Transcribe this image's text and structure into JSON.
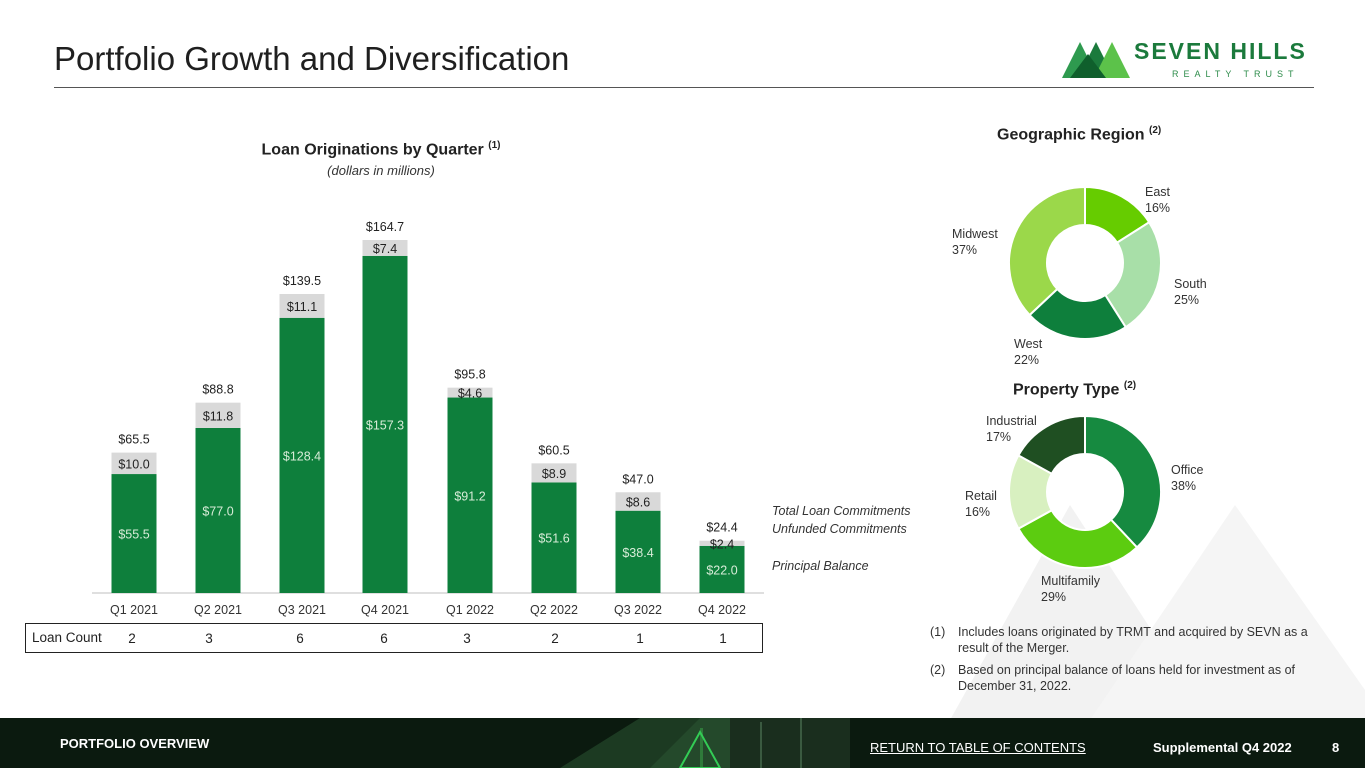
{
  "page": {
    "title": "Portfolio Growth and Diversification",
    "logo_name": "SEVEN HILLS",
    "logo_sub": "REALTY TRUST"
  },
  "colors": {
    "principal": "#0e7f3c",
    "unfunded": "#d9d9d9",
    "east": "#66cc00",
    "south": "#a8dfa8",
    "west": "#0e7f3c",
    "midwest": "#9bd84a",
    "office": "#168a40",
    "multifamily": "#5ccc10",
    "retail": "#d8f0c0",
    "industrial": "#1f4f22"
  },
  "chart_data": [
    {
      "type": "bar",
      "stacked": true,
      "title": "Loan Originations by Quarter",
      "title_footnote": "(1)",
      "subtitle": "(dollars in millions)",
      "categories": [
        "Q1 2021",
        "Q2 2021",
        "Q3 2021",
        "Q4 2021",
        "Q1 2022",
        "Q2 2022",
        "Q3 2022",
        "Q4 2022"
      ],
      "series": [
        {
          "name": "Principal Balance",
          "values": [
            55.5,
            77.0,
            128.4,
            157.3,
            91.2,
            51.6,
            38.4,
            22.0
          ],
          "labels": [
            "$55.5",
            "$77.0",
            "$128.4",
            "$157.3",
            "$91.2",
            "$51.6",
            "$38.4",
            "$22.0"
          ]
        },
        {
          "name": "Unfunded Commitments",
          "values": [
            10.0,
            11.8,
            11.1,
            7.4,
            4.6,
            8.9,
            8.6,
            2.4
          ],
          "labels": [
            "$10.0",
            "$11.8",
            "$11.1",
            "$7.4",
            "$4.6",
            "$8.9",
            "$8.6",
            "$2.4"
          ]
        }
      ],
      "totals": [
        65.5,
        88.8,
        139.5,
        164.7,
        95.8,
        60.5,
        47.0,
        24.4
      ],
      "total_labels": [
        "$65.5",
        "$88.8",
        "$139.5",
        "$164.7",
        "$95.8",
        "$60.5",
        "$47.0",
        "$24.4"
      ],
      "legend": {
        "total": "Total Loan Commitments",
        "unfunded": "Unfunded Commitments",
        "principal": "Principal Balance"
      },
      "ylim": [
        0,
        175
      ],
      "loan_count_label": "Loan Count",
      "loan_counts": [
        "2",
        "3",
        "6",
        "6",
        "3",
        "2",
        "1",
        "1"
      ]
    },
    {
      "type": "pie",
      "donut": true,
      "title": "Geographic Region",
      "title_footnote": "(2)",
      "slices": [
        {
          "name": "East",
          "value": 16,
          "label": "16%"
        },
        {
          "name": "South",
          "value": 25,
          "label": "25%"
        },
        {
          "name": "West",
          "value": 22,
          "label": "22%"
        },
        {
          "name": "Midwest",
          "value": 37,
          "label": "37%"
        }
      ]
    },
    {
      "type": "pie",
      "donut": true,
      "title": "Property Type",
      "title_footnote": "(2)",
      "slices": [
        {
          "name": "Office",
          "value": 38,
          "label": "38%"
        },
        {
          "name": "Multifamily",
          "value": 29,
          "label": "29%"
        },
        {
          "name": "Retail",
          "value": 16,
          "label": "16%"
        },
        {
          "name": "Industrial",
          "value": 17,
          "label": "17%"
        }
      ]
    }
  ],
  "notes": [
    {
      "num": "(1)",
      "text": "Includes loans originated by TRMT and acquired by SEVN as a result of the Merger."
    },
    {
      "num": "(2)",
      "text": "Based on principal balance of loans held for investment as of December 31, 2022."
    }
  ],
  "footer": {
    "section": "PORTFOLIO OVERVIEW",
    "link": "RETURN TO TABLE OF CONTENTS",
    "supplemental": "Supplemental Q4 2022",
    "page_number": "8"
  }
}
